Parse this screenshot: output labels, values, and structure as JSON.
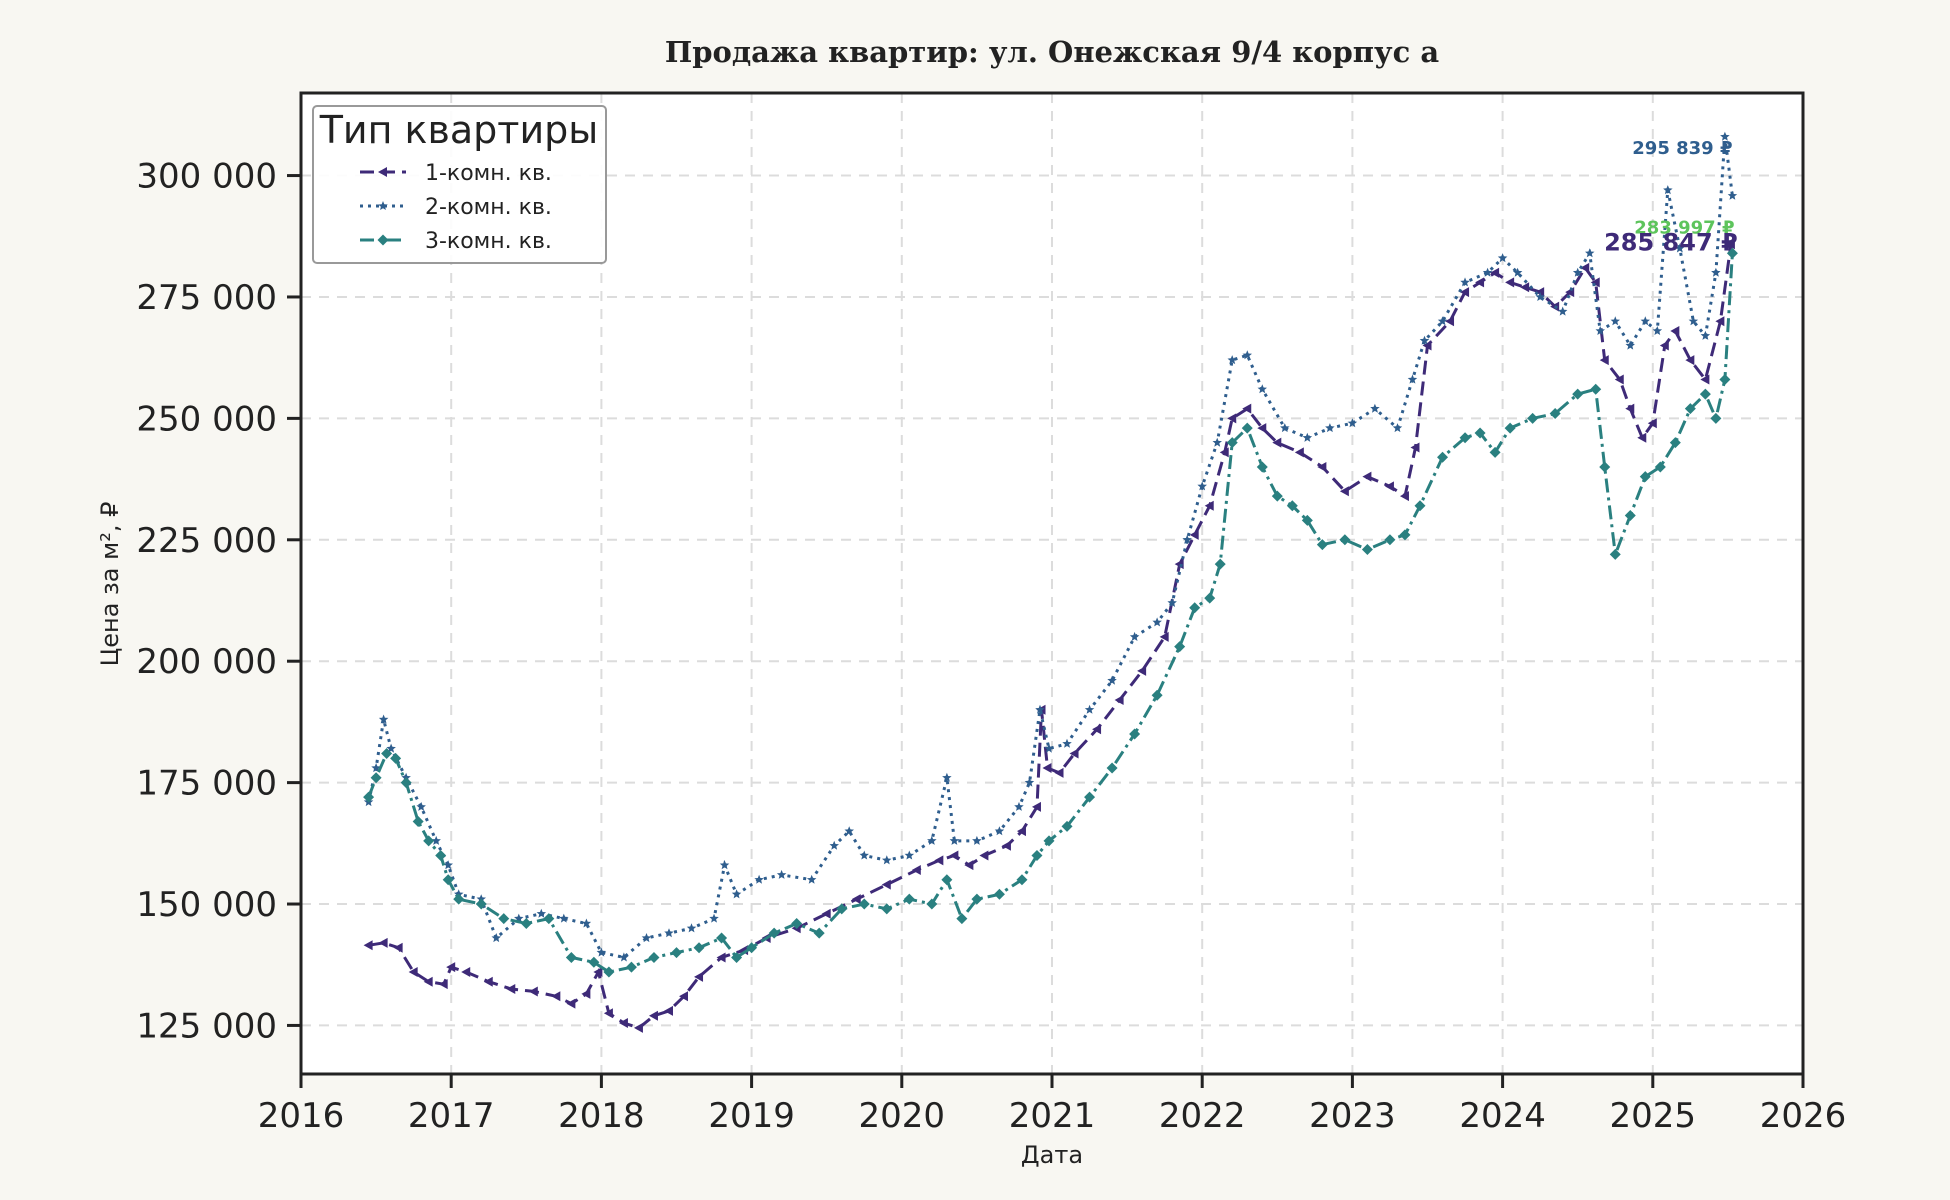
{
  "chart_data": {
    "type": "line",
    "title": "Продажа квартир: ул. Онежская 9/4 корпус а",
    "xlabel": "Дата",
    "ylabel": "Цена за м², ₽",
    "xlim": [
      2016.0,
      2026.0
    ],
    "ylim": [
      115000,
      317000
    ],
    "x_ticks": [
      2016,
      2017,
      2018,
      2019,
      2020,
      2021,
      2022,
      2023,
      2024,
      2025,
      2026
    ],
    "x_tick_labels": [
      "2016",
      "2017",
      "2018",
      "2019",
      "2020",
      "2021",
      "2022",
      "2023",
      "2024",
      "2025",
      "2026"
    ],
    "y_ticks": [
      125000,
      150000,
      175000,
      200000,
      225000,
      250000,
      275000,
      300000
    ],
    "y_tick_labels": [
      "125 000",
      "150 000",
      "175 000",
      "200 000",
      "225 000",
      "250 000",
      "275 000",
      "300 000"
    ],
    "grid": true,
    "legend": {
      "title": "Тип квартиры",
      "position": "top-left"
    },
    "series": [
      {
        "name": "1-комн. кв.",
        "color": "#3e2a78",
        "line_style": "dashed",
        "marker": "triangle-left",
        "end_label": "285 847 ₽",
        "points": [
          [
            2016.45,
            141500
          ],
          [
            2016.55,
            142000
          ],
          [
            2016.65,
            141000
          ],
          [
            2016.75,
            136000
          ],
          [
            2016.85,
            134000
          ],
          [
            2016.95,
            133500
          ],
          [
            2017.0,
            137000
          ],
          [
            2017.1,
            136000
          ],
          [
            2017.25,
            134000
          ],
          [
            2017.4,
            132500
          ],
          [
            2017.55,
            132000
          ],
          [
            2017.7,
            131000
          ],
          [
            2017.8,
            129500
          ],
          [
            2017.9,
            131500
          ],
          [
            2017.98,
            136000
          ],
          [
            2018.05,
            127500
          ],
          [
            2018.15,
            125500
          ],
          [
            2018.25,
            124500
          ],
          [
            2018.35,
            127000
          ],
          [
            2018.45,
            128000
          ],
          [
            2018.55,
            131000
          ],
          [
            2018.65,
            135000
          ],
          [
            2018.8,
            139000
          ],
          [
            2018.95,
            140500
          ],
          [
            2019.1,
            143000
          ],
          [
            2019.3,
            145000
          ],
          [
            2019.5,
            148000
          ],
          [
            2019.7,
            151000
          ],
          [
            2019.9,
            154000
          ],
          [
            2020.1,
            157000
          ],
          [
            2020.25,
            159000
          ],
          [
            2020.35,
            160000
          ],
          [
            2020.45,
            158000
          ],
          [
            2020.55,
            160000
          ],
          [
            2020.7,
            162000
          ],
          [
            2020.8,
            165000
          ],
          [
            2020.9,
            170000
          ],
          [
            2020.93,
            190000
          ],
          [
            2020.97,
            178000
          ],
          [
            2021.05,
            177000
          ],
          [
            2021.15,
            181000
          ],
          [
            2021.3,
            186000
          ],
          [
            2021.45,
            192000
          ],
          [
            2021.6,
            198000
          ],
          [
            2021.75,
            205000
          ],
          [
            2021.85,
            220000
          ],
          [
            2021.95,
            226000
          ],
          [
            2022.05,
            232000
          ],
          [
            2022.15,
            243000
          ],
          [
            2022.2,
            250000
          ],
          [
            2022.3,
            252000
          ],
          [
            2022.4,
            248000
          ],
          [
            2022.5,
            245000
          ],
          [
            2022.65,
            243000
          ],
          [
            2022.8,
            240000
          ],
          [
            2022.95,
            235000
          ],
          [
            2023.1,
            238000
          ],
          [
            2023.25,
            236000
          ],
          [
            2023.35,
            234000
          ],
          [
            2023.42,
            244000
          ],
          [
            2023.5,
            265000
          ],
          [
            2023.65,
            270000
          ],
          [
            2023.75,
            276000
          ],
          [
            2023.85,
            278000
          ],
          [
            2023.95,
            280000
          ],
          [
            2024.05,
            278000
          ],
          [
            2024.15,
            277000
          ],
          [
            2024.25,
            276000
          ],
          [
            2024.35,
            273000
          ],
          [
            2024.45,
            276000
          ],
          [
            2024.55,
            281000
          ],
          [
            2024.62,
            278000
          ],
          [
            2024.68,
            262000
          ],
          [
            2024.78,
            258000
          ],
          [
            2024.85,
            252000
          ],
          [
            2024.93,
            246000
          ],
          [
            2025.0,
            249000
          ],
          [
            2025.08,
            265000
          ],
          [
            2025.15,
            268000
          ],
          [
            2025.25,
            262000
          ],
          [
            2025.35,
            258000
          ],
          [
            2025.45,
            270000
          ],
          [
            2025.52,
            285847
          ]
        ]
      },
      {
        "name": "2-комн. кв.",
        "color": "#2f5e8e",
        "line_style": "dotted",
        "marker": "star",
        "end_label": "295 839 ₽",
        "points": [
          [
            2016.45,
            171000
          ],
          [
            2016.5,
            178000
          ],
          [
            2016.55,
            188000
          ],
          [
            2016.6,
            182000
          ],
          [
            2016.7,
            176000
          ],
          [
            2016.8,
            170000
          ],
          [
            2016.9,
            163000
          ],
          [
            2016.98,
            158000
          ],
          [
            2017.05,
            152000
          ],
          [
            2017.2,
            151000
          ],
          [
            2017.3,
            143000
          ],
          [
            2017.45,
            147000
          ],
          [
            2017.6,
            148000
          ],
          [
            2017.75,
            147000
          ],
          [
            2017.9,
            146000
          ],
          [
            2018.0,
            140000
          ],
          [
            2018.15,
            139000
          ],
          [
            2018.3,
            143000
          ],
          [
            2018.45,
            144000
          ],
          [
            2018.6,
            145000
          ],
          [
            2018.75,
            147000
          ],
          [
            2018.82,
            158000
          ],
          [
            2018.9,
            152000
          ],
          [
            2019.05,
            155000
          ],
          [
            2019.2,
            156000
          ],
          [
            2019.4,
            155000
          ],
          [
            2019.55,
            162000
          ],
          [
            2019.65,
            165000
          ],
          [
            2019.75,
            160000
          ],
          [
            2019.9,
            159000
          ],
          [
            2020.05,
            160000
          ],
          [
            2020.2,
            163000
          ],
          [
            2020.3,
            176000
          ],
          [
            2020.35,
            163000
          ],
          [
            2020.5,
            163000
          ],
          [
            2020.65,
            165000
          ],
          [
            2020.78,
            170000
          ],
          [
            2020.85,
            175000
          ],
          [
            2020.92,
            190000
          ],
          [
            2020.98,
            182000
          ],
          [
            2021.1,
            183000
          ],
          [
            2021.25,
            190000
          ],
          [
            2021.4,
            196000
          ],
          [
            2021.55,
            205000
          ],
          [
            2021.7,
            208000
          ],
          [
            2021.8,
            212000
          ],
          [
            2021.9,
            225000
          ],
          [
            2022.0,
            236000
          ],
          [
            2022.1,
            245000
          ],
          [
            2022.2,
            262000
          ],
          [
            2022.3,
            263000
          ],
          [
            2022.4,
            256000
          ],
          [
            2022.55,
            248000
          ],
          [
            2022.7,
            246000
          ],
          [
            2022.85,
            248000
          ],
          [
            2023.0,
            249000
          ],
          [
            2023.15,
            252000
          ],
          [
            2023.3,
            248000
          ],
          [
            2023.4,
            258000
          ],
          [
            2023.48,
            266000
          ],
          [
            2023.6,
            270000
          ],
          [
            2023.75,
            278000
          ],
          [
            2023.9,
            280000
          ],
          [
            2024.0,
            283000
          ],
          [
            2024.1,
            280000
          ],
          [
            2024.25,
            275000
          ],
          [
            2024.4,
            272000
          ],
          [
            2024.5,
            280000
          ],
          [
            2024.58,
            284000
          ],
          [
            2024.65,
            268000
          ],
          [
            2024.75,
            270000
          ],
          [
            2024.85,
            265000
          ],
          [
            2024.95,
            270000
          ],
          [
            2025.03,
            268000
          ],
          [
            2025.1,
            297000
          ],
          [
            2025.18,
            285000
          ],
          [
            2025.27,
            270000
          ],
          [
            2025.35,
            267000
          ],
          [
            2025.42,
            280000
          ],
          [
            2025.48,
            308000
          ],
          [
            2025.53,
            295839
          ]
        ]
      },
      {
        "name": "3-комн. кв.",
        "color": "#2a8080",
        "line_style": "dashdot",
        "marker": "diamond",
        "end_label": "283 997 ₽",
        "end_label_color": "#5dc45c",
        "points": [
          [
            2016.45,
            172000
          ],
          [
            2016.5,
            176000
          ],
          [
            2016.57,
            181000
          ],
          [
            2016.63,
            180000
          ],
          [
            2016.7,
            175000
          ],
          [
            2016.78,
            167000
          ],
          [
            2016.85,
            163000
          ],
          [
            2016.93,
            160000
          ],
          [
            2016.98,
            155000
          ],
          [
            2017.05,
            151000
          ],
          [
            2017.2,
            150000
          ],
          [
            2017.35,
            147000
          ],
          [
            2017.5,
            146000
          ],
          [
            2017.65,
            147000
          ],
          [
            2017.8,
            139000
          ],
          [
            2017.95,
            138000
          ],
          [
            2018.05,
            136000
          ],
          [
            2018.2,
            137000
          ],
          [
            2018.35,
            139000
          ],
          [
            2018.5,
            140000
          ],
          [
            2018.65,
            141000
          ],
          [
            2018.8,
            143000
          ],
          [
            2018.9,
            139000
          ],
          [
            2019.0,
            141000
          ],
          [
            2019.15,
            144000
          ],
          [
            2019.3,
            146000
          ],
          [
            2019.45,
            144000
          ],
          [
            2019.6,
            149000
          ],
          [
            2019.75,
            150000
          ],
          [
            2019.9,
            149000
          ],
          [
            2020.05,
            151000
          ],
          [
            2020.2,
            150000
          ],
          [
            2020.3,
            155000
          ],
          [
            2020.4,
            147000
          ],
          [
            2020.5,
            151000
          ],
          [
            2020.65,
            152000
          ],
          [
            2020.8,
            155000
          ],
          [
            2020.9,
            160000
          ],
          [
            2020.98,
            163000
          ],
          [
            2021.1,
            166000
          ],
          [
            2021.25,
            172000
          ],
          [
            2021.4,
            178000
          ],
          [
            2021.55,
            185000
          ],
          [
            2021.7,
            193000
          ],
          [
            2021.85,
            203000
          ],
          [
            2021.95,
            211000
          ],
          [
            2022.05,
            213000
          ],
          [
            2022.12,
            220000
          ],
          [
            2022.2,
            245000
          ],
          [
            2022.3,
            248000
          ],
          [
            2022.4,
            240000
          ],
          [
            2022.5,
            234000
          ],
          [
            2022.6,
            232000
          ],
          [
            2022.7,
            229000
          ],
          [
            2022.8,
            224000
          ],
          [
            2022.95,
            225000
          ],
          [
            2023.1,
            223000
          ],
          [
            2023.25,
            225000
          ],
          [
            2023.35,
            226000
          ],
          [
            2023.45,
            232000
          ],
          [
            2023.6,
            242000
          ],
          [
            2023.75,
            246000
          ],
          [
            2023.85,
            247000
          ],
          [
            2023.95,
            243000
          ],
          [
            2024.05,
            248000
          ],
          [
            2024.2,
            250000
          ],
          [
            2024.35,
            251000
          ],
          [
            2024.5,
            255000
          ],
          [
            2024.62,
            256000
          ],
          [
            2024.68,
            240000
          ],
          [
            2024.75,
            222000
          ],
          [
            2024.85,
            230000
          ],
          [
            2024.95,
            238000
          ],
          [
            2025.05,
            240000
          ],
          [
            2025.15,
            245000
          ],
          [
            2025.25,
            252000
          ],
          [
            2025.35,
            255000
          ],
          [
            2025.42,
            250000
          ],
          [
            2025.48,
            258000
          ],
          [
            2025.53,
            283997
          ]
        ]
      }
    ]
  }
}
